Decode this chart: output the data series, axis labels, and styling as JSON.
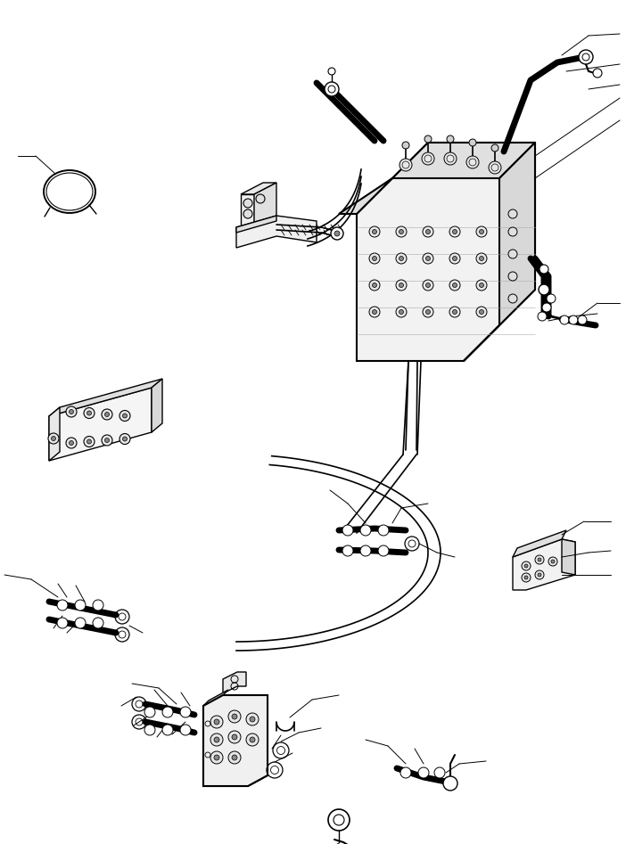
{
  "bg_color": "#ffffff",
  "lc": "#000000",
  "fig_width": 7.02,
  "fig_height": 9.47,
  "dpi": 100
}
